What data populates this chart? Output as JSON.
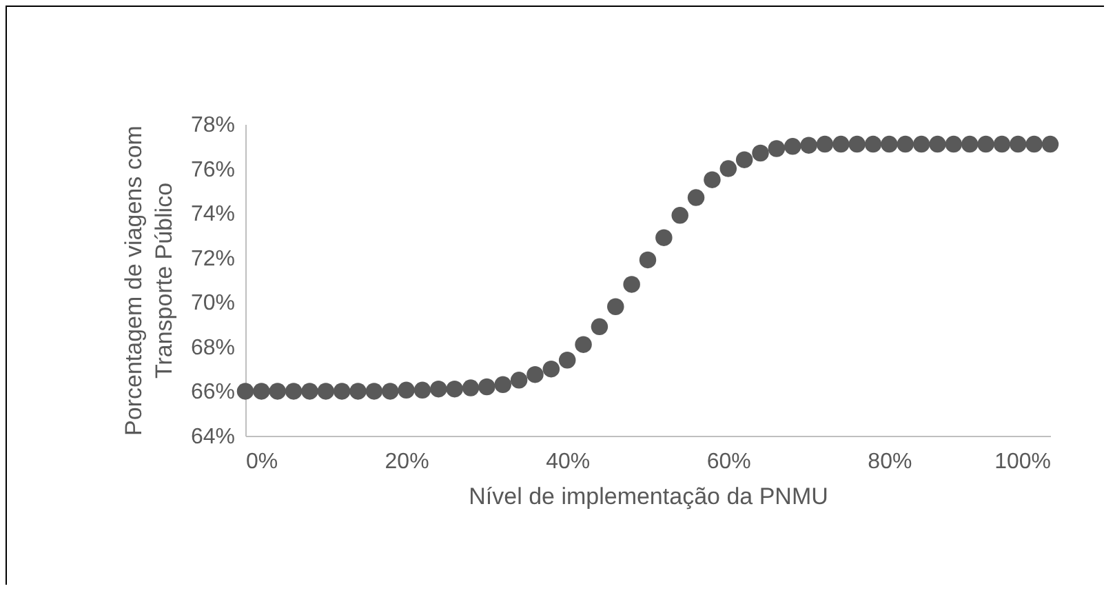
{
  "chart_data": {
    "type": "scatter",
    "xlabel": "Nível de implementação da PNMU",
    "ylabel": "Porcentagem de viagens com Transporte Público",
    "marker": "circle",
    "x": [
      0,
      2,
      4,
      6,
      8,
      10,
      12,
      14,
      16,
      18,
      20,
      22,
      24,
      26,
      28,
      30,
      32,
      34,
      36,
      38,
      40,
      42,
      44,
      46,
      48,
      50,
      52,
      54,
      56,
      58,
      60,
      62,
      64,
      66,
      68,
      70,
      72,
      74,
      76,
      78,
      80,
      82,
      84,
      86,
      88,
      90,
      92,
      94,
      96,
      98,
      100
    ],
    "series": [
      {
        "color": "#595959",
        "values": [
          66.0,
          66.0,
          66.0,
          66.0,
          66.0,
          66.0,
          66.0,
          66.0,
          66.0,
          66.0,
          66.05,
          66.05,
          66.1,
          66.1,
          66.15,
          66.2,
          66.3,
          66.5,
          66.75,
          67.0,
          67.4,
          68.1,
          68.9,
          69.8,
          70.8,
          71.9,
          72.9,
          73.9,
          74.7,
          75.5,
          76.0,
          76.4,
          76.7,
          76.9,
          77.0,
          77.05,
          77.1,
          77.1,
          77.1,
          77.1,
          77.1,
          77.1,
          77.1,
          77.1,
          77.1,
          77.1,
          77.1,
          77.1,
          77.1,
          77.1,
          77.1
        ]
      }
    ],
    "xlim": [
      0,
      100
    ],
    "xticks": [
      {
        "value": 0,
        "label": "0%"
      },
      {
        "value": 20,
        "label": "20%"
      },
      {
        "value": 40,
        "label": "40%"
      },
      {
        "value": 60,
        "label": "60%"
      },
      {
        "value": 80,
        "label": "80%"
      },
      {
        "value": 100,
        "label": "100%"
      }
    ],
    "ylim": [
      64,
      78
    ],
    "yticks": [
      {
        "value": 64,
        "label": "64%"
      },
      {
        "value": 66,
        "label": "66%"
      },
      {
        "value": 68,
        "label": "68%"
      },
      {
        "value": 70,
        "label": "70%"
      },
      {
        "value": 72,
        "label": "72%"
      },
      {
        "value": 74,
        "label": "74%"
      },
      {
        "value": 76,
        "label": "76%"
      },
      {
        "value": 78,
        "label": "78%"
      }
    ],
    "grid": false
  }
}
